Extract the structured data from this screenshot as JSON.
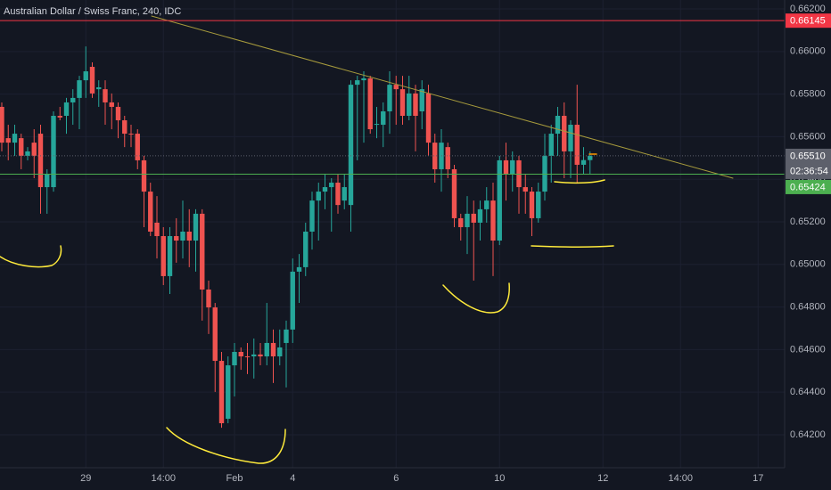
{
  "chart_data": {
    "type": "candlestick",
    "title": "Australian Dollar / Swiss Franc, 240, IDC",
    "categories": [
      null,
      null,
      null,
      null,
      null,
      null,
      null,
      null,
      null,
      null,
      null,
      null,
      null,
      "29",
      null,
      null,
      null,
      null,
      null,
      null,
      null,
      null,
      null,
      null,
      null,
      "14:00",
      null,
      null,
      null,
      null,
      null,
      null,
      null,
      null,
      null,
      null,
      "Feb",
      null,
      null,
      null,
      null,
      null,
      null,
      null,
      null,
      "4",
      null,
      null,
      null,
      null,
      null,
      null,
      null,
      null,
      null,
      null,
      null,
      null,
      null,
      null,
      null,
      "6",
      null,
      null,
      null,
      null,
      null,
      null,
      null,
      null,
      null,
      null,
      null,
      null,
      null,
      null,
      null,
      "10",
      null,
      null,
      null,
      null,
      null,
      null,
      null,
      null,
      null,
      null,
      null,
      null,
      null,
      null,
      null,
      "12",
      null,
      null,
      null,
      null,
      null,
      null,
      null,
      null,
      null,
      null,
      null,
      "14:00",
      null,
      null,
      null,
      null,
      null,
      null,
      null,
      null,
      null,
      null,
      null,
      "17"
    ],
    "open": [
      0.6574,
      0.65593,
      0.65572,
      0.65593,
      0.6551,
      0.65572,
      0.65614,
      0.65363,
      0.65363,
      0.65698,
      0.65698,
      0.65761,
      0.65782,
      0.65865,
      0.65928,
      0.65823,
      0.65823,
      0.65761,
      0.6574,
      0.65677,
      0.65614,
      0.65614,
      0.65489,
      0.65342,
      0.65196,
      0.65133,
      0.64945,
      0.65133,
      0.65112,
      0.65154,
      0.65112,
      0.65238,
      0.64882,
      0.64798,
      0.64547,
      0.64275,
      0.64526,
      0.64589,
      0.64568,
      0.64568,
      0.64577,
      0.64568,
      0.64631,
      0.64568,
      0.64631,
      0.64694,
      0.64966,
      0.64987,
      0.65154,
      0.653,
      0.65342,
      0.65363,
      0.65384,
      0.653,
      0.65279,
      0.65844,
      0.65865,
      0.65874,
      0.65656,
      0.65656,
      0.65719,
      0.65844,
      0.65823,
      0.65698,
      0.65803,
      0.65719,
      0.65803,
      0.65572,
      0.65447,
      0.65551,
      0.65447,
      0.65217,
      0.65175,
      0.65238,
      0.65196,
      0.65259,
      0.653,
      0.65112,
      0.65489,
      0.65426,
      0.65489,
      0.65363,
      0.65342,
      0.65217,
      0.65342,
      0.6551,
      0.65614,
      0.65698,
      0.65531,
      0.65656,
      0.65468,
      0.6549,
      null,
      null,
      null,
      null,
      null,
      null,
      null,
      null,
      null,
      null,
      null,
      null,
      null,
      null,
      null,
      null,
      null,
      null,
      null,
      null,
      null,
      null,
      null,
      null,
      null,
      null
    ],
    "high": [
      0.65761,
      0.65656,
      0.65656,
      0.65614,
      0.65551,
      0.65635,
      0.65656,
      0.65447,
      0.65719,
      0.6574,
      0.65782,
      0.65823,
      0.65886,
      0.66024,
      0.65949,
      0.65865,
      0.65865,
      0.65803,
      0.65761,
      0.65698,
      0.65656,
      0.65635,
      0.6551,
      0.65384,
      0.65321,
      0.65175,
      0.65175,
      0.65217,
      0.653,
      0.65259,
      0.65259,
      0.65259,
      0.64924,
      0.64819,
      0.64589,
      0.64568,
      0.64631,
      0.6461,
      0.64631,
      0.64652,
      0.64631,
      0.64819,
      0.64694,
      0.64694,
      0.64736,
      0.65028,
      0.65049,
      0.65196,
      0.65342,
      0.65384,
      0.65426,
      0.65405,
      0.65426,
      0.65426,
      0.65865,
      0.65886,
      0.65907,
      0.65886,
      0.6574,
      0.65761,
      0.65907,
      0.65886,
      0.65886,
      0.65886,
      0.65844,
      0.65865,
      0.65844,
      0.65614,
      0.65635,
      0.65572,
      0.65468,
      0.65238,
      0.65321,
      0.653,
      0.653,
      0.65363,
      0.65384,
      0.6551,
      0.65572,
      0.65531,
      0.6551,
      0.65426,
      0.65363,
      0.65384,
      0.65614,
      0.65656,
      0.6574,
      0.65761,
      0.65677,
      0.65844,
      0.65551,
      0.65531,
      null,
      null,
      null,
      null,
      null,
      null,
      null,
      null,
      null,
      null,
      null,
      null,
      null,
      null,
      null,
      null,
      null,
      null,
      null,
      null,
      null,
      null,
      null,
      null,
      null,
      null
    ],
    "low": [
      0.65531,
      0.65489,
      0.6551,
      0.65447,
      0.65489,
      0.65405,
      0.65238,
      0.65238,
      0.65342,
      0.65677,
      0.65614,
      0.65656,
      0.65635,
      0.65782,
      0.65782,
      0.6574,
      0.65656,
      0.65635,
      0.65593,
      0.65551,
      0.65551,
      0.65447,
      0.65175,
      0.65133,
      0.65028,
      0.64903,
      0.64861,
      0.65008,
      0.65028,
      0.64987,
      0.64966,
      0.64736,
      0.64673,
      0.64401,
      0.64233,
      0.64254,
      0.6438,
      0.64505,
      0.64485,
      0.64464,
      0.64526,
      0.64526,
      0.64443,
      0.64526,
      0.64422,
      0.64631,
      0.64819,
      0.64945,
      0.6507,
      0.65112,
      0.65259,
      0.65154,
      0.65238,
      0.65259,
      0.65154,
      0.65489,
      0.65572,
      0.65614,
      0.65593,
      0.65551,
      0.65614,
      0.65656,
      0.65656,
      0.65677,
      0.65531,
      0.65635,
      0.6551,
      0.65384,
      0.65342,
      0.65405,
      0.65175,
      0.65112,
      0.65049,
      0.64924,
      0.65112,
      0.65196,
      0.64945,
      0.65091,
      0.653,
      0.65342,
      0.65238,
      0.65238,
      0.65133,
      0.65196,
      0.653,
      0.65384,
      0.6551,
      0.65405,
      0.65405,
      0.65384,
      0.65426,
      0.65424,
      null,
      null,
      null,
      null,
      null,
      null,
      null,
      null,
      null,
      null,
      null,
      null,
      null,
      null,
      null,
      null,
      null,
      null,
      null,
      null,
      null,
      null,
      null,
      null,
      null,
      null
    ],
    "close": [
      0.65572,
      0.65572,
      0.65614,
      0.6551,
      0.65531,
      0.6551,
      0.65363,
      0.65426,
      0.65698,
      0.6569,
      0.65761,
      0.65782,
      0.65865,
      0.65907,
      0.65803,
      0.65832,
      0.65761,
      0.6574,
      0.65677,
      0.65614,
      0.6561,
      0.65489,
      0.65342,
      0.65154,
      0.65133,
      0.64945,
      0.65133,
      0.65112,
      0.65154,
      0.65112,
      0.65238,
      0.64882,
      0.64798,
      0.64547,
      0.64254,
      0.64526,
      0.64589,
      0.64568,
      0.64565,
      0.64577,
      0.64568,
      0.64631,
      0.64568,
      0.6461,
      0.64694,
      0.64966,
      0.64987,
      0.65154,
      0.653,
      0.65342,
      0.65363,
      0.65384,
      0.65279,
      0.65363,
      0.65844,
      0.65865,
      0.65874,
      0.65635,
      0.6566,
      0.65719,
      0.65844,
      0.65823,
      0.65698,
      0.65803,
      0.65698,
      0.65823,
      0.65572,
      0.65447,
      0.65572,
      0.65447,
      0.65217,
      0.65175,
      0.65238,
      0.65196,
      0.65259,
      0.653,
      0.65112,
      0.65489,
      0.65426,
      0.65489,
      0.65363,
      0.65342,
      0.65217,
      0.65342,
      0.6551,
      0.65614,
      0.65698,
      0.65531,
      0.65656,
      0.65468,
      0.6549,
      0.6551,
      null,
      null,
      null,
      null,
      null,
      null,
      null,
      null,
      null,
      null,
      null,
      null,
      null,
      null,
      null,
      null,
      null,
      null,
      null,
      null,
      null,
      null,
      null,
      null,
      null,
      null
    ],
    "up_color": "#26a69a",
    "down_color": "#ef5350",
    "ylim": [
      0.64045,
      0.66242
    ],
    "yticks": [
      {
        "value": 0.662,
        "label": "0.66200"
      },
      {
        "value": 0.66,
        "label": "0.66000"
      },
      {
        "value": 0.658,
        "label": "0.65800"
      },
      {
        "value": 0.656,
        "label": "0.65600"
      },
      {
        "value": 0.654,
        "label": "0.65400"
      },
      {
        "value": 0.652,
        "label": "0.65200"
      },
      {
        "value": 0.65,
        "label": "0.65000"
      },
      {
        "value": 0.648,
        "label": "0.64800"
      },
      {
        "value": 0.646,
        "label": "0.64600"
      },
      {
        "value": 0.644,
        "label": "0.64400"
      },
      {
        "value": 0.642,
        "label": "0.64200"
      }
    ],
    "grid": true,
    "price_lines": [
      {
        "value": 0.66145,
        "label": "0.66145",
        "color": "#f23645",
        "style": "solid"
      },
      {
        "value": 0.6551,
        "label": "0.65510",
        "color": "#5d606b",
        "style": "dotted",
        "countdown": "02:36:54"
      },
      {
        "value": 0.65424,
        "label": "0.65424",
        "color": "#4caf50",
        "style": "solid"
      }
    ]
  }
}
